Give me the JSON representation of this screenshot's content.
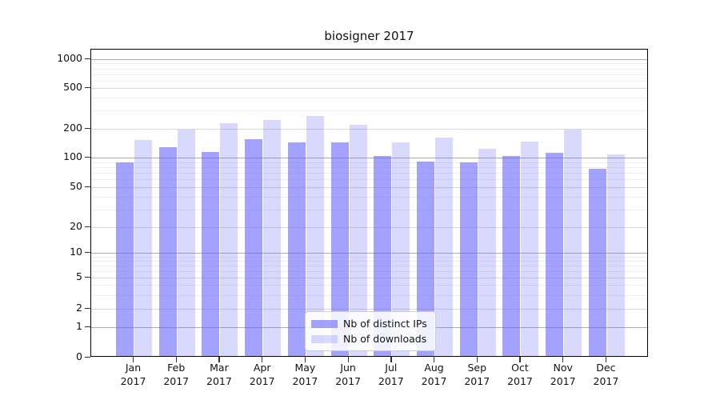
{
  "title": "biosigner 2017",
  "chart_data": {
    "type": "bar",
    "title": "biosigner 2017",
    "categories": [
      "Jan",
      "Feb",
      "Mar",
      "Apr",
      "May",
      "Jun",
      "Jul",
      "Aug",
      "Sep",
      "Oct",
      "Nov",
      "Dec"
    ],
    "category_year": "2017",
    "series": [
      {
        "name": "Nb of distinct IPs",
        "color": "rgba(102,102,255,0.6)",
        "values": [
          86,
          124,
          110,
          150,
          139,
          139,
          100,
          87,
          86,
          100,
          109,
          74
        ]
      },
      {
        "name": "Nb of downloads",
        "color": "rgba(102,102,255,0.25)",
        "values": [
          147,
          189,
          220,
          236,
          256,
          212,
          140,
          156,
          119,
          142,
          189,
          104
        ]
      }
    ],
    "xlabel": "",
    "ylabel": "",
    "y_scale": "symlog",
    "y_ticks": [
      0,
      1,
      2,
      5,
      10,
      20,
      50,
      100,
      200,
      500,
      1000
    ],
    "y_minor_gridlines": [
      3,
      4,
      6,
      7,
      8,
      9,
      30,
      40,
      60,
      70,
      80,
      90,
      300,
      400,
      600,
      700,
      800,
      900
    ],
    "ylim": [
      0,
      1000
    ],
    "grid": true,
    "legend_position": "lower center"
  },
  "colors": {
    "bar_dark": "rgba(102,102,255,0.6)",
    "bar_light": "rgba(102,102,255,0.25)",
    "grid_major": "#ababab",
    "grid_mid": "#d9d9d9",
    "grid_minor": "#ededed",
    "frame": "#000000"
  }
}
